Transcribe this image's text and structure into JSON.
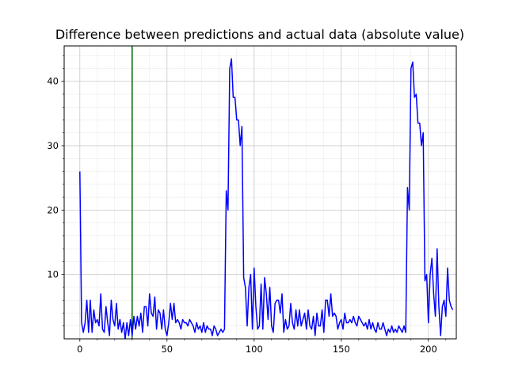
{
  "chart_data": {
    "type": "line",
    "title": "Difference between predictions and actual data (absolute value)",
    "xlabel": "",
    "ylabel": "",
    "xlim": [
      -9,
      216
    ],
    "ylim": [
      0,
      45.5
    ],
    "x_ticks": [
      0,
      50,
      100,
      150,
      200
    ],
    "y_ticks": [
      10,
      20,
      30,
      40
    ],
    "grid": true,
    "minor_grid": true,
    "colors": {
      "series": "#0000ff",
      "vline": "#006400",
      "grid": "#d3d3d3"
    },
    "vlines": [
      {
        "x": 30
      }
    ],
    "series": [
      {
        "values": [
          26,
          2.5,
          1,
          2.5,
          6,
          1,
          6,
          1,
          4.5,
          2.5,
          3,
          2,
          7,
          1.5,
          1,
          5,
          2.5,
          0.5,
          6,
          3,
          2,
          5.5,
          1.5,
          3,
          1,
          2.5,
          0,
          2.5,
          0.5,
          3,
          0.5,
          3.5,
          1.5,
          3.5,
          2,
          4,
          1,
          5,
          5,
          2,
          7,
          4,
          3.5,
          6.5,
          1.5,
          4.5,
          4,
          1.5,
          4.5,
          1.5,
          0.5,
          2.5,
          5.5,
          3,
          5.5,
          2.5,
          3,
          2.5,
          1.5,
          3,
          2.5,
          2.5,
          2,
          3,
          2.5,
          2,
          1,
          2.5,
          1.5,
          2,
          1,
          2.5,
          1,
          2,
          1.5,
          1.5,
          0.5,
          2,
          1.5,
          0.5,
          1,
          1.5,
          1,
          1.5,
          23,
          20,
          42,
          43.5,
          37.5,
          37.5,
          34,
          34,
          30,
          33,
          9.5,
          8,
          2,
          8,
          10,
          1.5,
          11,
          5,
          1.5,
          2,
          8.5,
          1.5,
          9.5,
          7,
          3,
          8,
          2,
          1,
          5.5,
          6,
          6,
          4,
          7,
          1,
          3,
          1.5,
          2,
          5.5,
          2.5,
          1.5,
          4.5,
          2,
          4.5,
          2,
          3,
          4,
          1.5,
          4.5,
          2,
          1.5,
          3.5,
          0.5,
          4,
          2,
          2,
          4.5,
          1,
          6,
          6,
          3.5,
          7,
          3.5,
          4,
          3.5,
          1.5,
          2.5,
          3,
          1.5,
          4,
          2.5,
          2.5,
          3,
          2.5,
          3.5,
          2.5,
          2,
          3.5,
          3,
          2.5,
          2,
          2.5,
          1.5,
          3,
          1.5,
          2.5,
          1.5,
          1,
          2.5,
          1.5,
          1.5,
          2.5,
          1.5,
          0.5,
          1.5,
          1,
          2,
          1,
          1.5,
          1,
          2,
          1.5,
          1,
          2,
          1,
          23.5,
          20,
          42,
          43,
          37.5,
          38,
          33.5,
          33.5,
          30,
          32,
          9,
          10,
          2.5,
          10,
          12.5,
          7,
          3.5,
          14,
          5,
          0.5,
          5,
          6,
          3.5,
          11,
          6,
          5,
          4.5
        ]
      }
    ]
  }
}
